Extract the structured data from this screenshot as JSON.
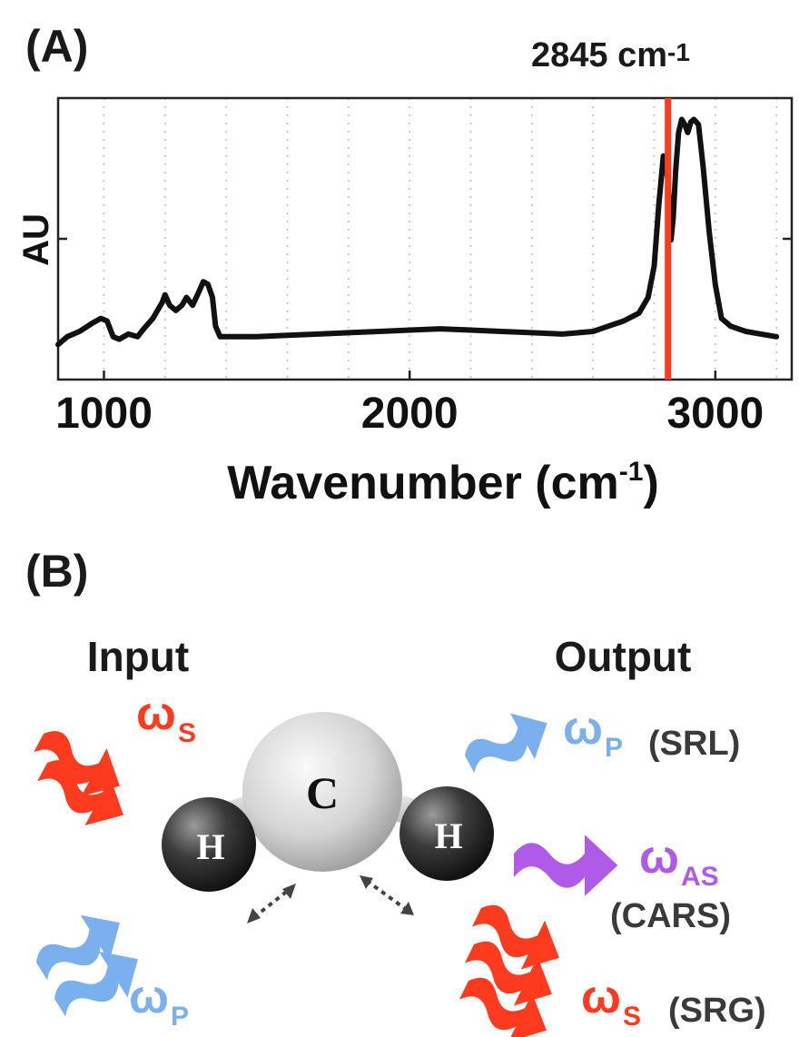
{
  "panel_a": {
    "label": "(A)",
    "peak_marker": {
      "wavenumber": 2845,
      "label_main": "2845 cm",
      "label_sup": "-1",
      "color": "#ff3b1f"
    },
    "y_axis_label": "AU",
    "x_axis_label_main": "Wavenumber (cm",
    "x_axis_label_sup": "-1",
    "x_axis_label_close": ")",
    "x_ticks": [
      "1000",
      "2000",
      "3000"
    ]
  },
  "chart_data": {
    "type": "line",
    "title": "",
    "xlabel": "Wavenumber (cm-1)",
    "ylabel": "AU",
    "xlim": [
      850,
      3250
    ],
    "ylim": [
      0,
      1
    ],
    "xticks": [
      1000,
      2000,
      3000
    ],
    "grid": "vertical dotted",
    "series": [
      {
        "color": "#111111",
        "x": [
          850,
          880,
          920,
          960,
          990,
          1010,
          1030,
          1050,
          1080,
          1110,
          1130,
          1160,
          1190,
          1200,
          1215,
          1235,
          1255,
          1270,
          1290,
          1310,
          1325,
          1340,
          1355,
          1365,
          1380,
          1400,
          1500,
          1600,
          1700,
          1800,
          1900,
          2000,
          2100,
          2200,
          2300,
          2400,
          2500,
          2600,
          2650,
          2700,
          2750,
          2780,
          2800,
          2815,
          2830,
          2845,
          2855,
          2862,
          2870,
          2880,
          2890,
          2900,
          2910,
          2920,
          2930,
          2945,
          2960,
          2980,
          3000,
          3020,
          3050,
          3100,
          3150,
          3200
        ],
        "y": [
          0.12,
          0.15,
          0.17,
          0.2,
          0.22,
          0.21,
          0.15,
          0.14,
          0.16,
          0.15,
          0.18,
          0.22,
          0.28,
          0.31,
          0.27,
          0.25,
          0.27,
          0.3,
          0.27,
          0.32,
          0.36,
          0.35,
          0.3,
          0.19,
          0.15,
          0.15,
          0.15,
          0.155,
          0.16,
          0.165,
          0.17,
          0.175,
          0.18,
          0.175,
          0.17,
          0.165,
          0.16,
          0.17,
          0.19,
          0.21,
          0.24,
          0.3,
          0.42,
          0.65,
          0.84,
          0.75,
          0.52,
          0.6,
          0.78,
          0.93,
          0.98,
          0.96,
          0.93,
          0.97,
          0.98,
          0.96,
          0.8,
          0.55,
          0.35,
          0.22,
          0.19,
          0.17,
          0.16,
          0.15
        ]
      }
    ]
  },
  "panel_b": {
    "label": "(B)",
    "input_label": "Input",
    "output_label": "Output",
    "molecule": {
      "center_atom": "C",
      "left_atom": "H",
      "right_atom": "H"
    },
    "inputs": {
      "stokes": {
        "symbol": "ω",
        "sub": "S",
        "color": "#ff3b1f"
      },
      "pump": {
        "symbol": "ω",
        "sub": "P",
        "color": "#7ab0ee"
      }
    },
    "outputs": {
      "srl": {
        "symbol": "ω",
        "sub": "P",
        "color": "#7ab0ee",
        "tech": "(SRL)"
      },
      "cars": {
        "symbol": "ω",
        "sub": "AS",
        "color": "#b05ae8",
        "tech": "(CARS)"
      },
      "srg": {
        "symbol": "ω",
        "sub": "S",
        "color": "#ff3b1f",
        "tech": "(SRG)"
      }
    }
  }
}
